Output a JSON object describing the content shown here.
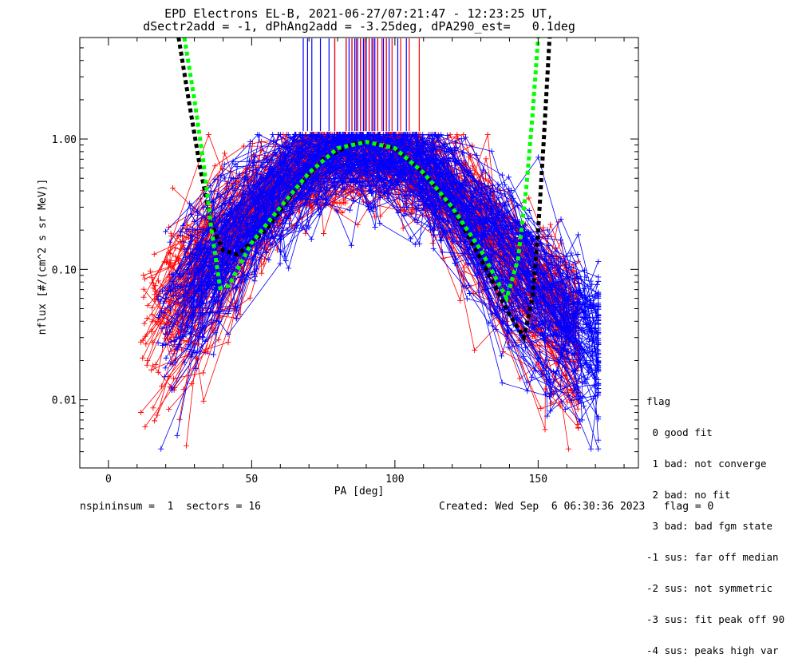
{
  "chart_data": {
    "type": "scatter",
    "title_lines": [
      "EPD Electrons EL-B, 2021-06-27/07:21:47 - 12:23:25 UT,",
      "dSectr2add = -1, dPhAng2add = -3.25deg, dPA290_est=   0.1deg"
    ],
    "xlabel": "PA [deg]",
    "ylabel": "nflux [#/(cm^2 s sr MeV)]",
    "xlim": [
      -10,
      185
    ],
    "ylim": [
      0.003,
      6.0
    ],
    "yscale": "log",
    "x_ticks": [
      0,
      50,
      100,
      150
    ],
    "x_tick_labels": [
      "0",
      "50",
      "100",
      "150"
    ],
    "y_ticks": [
      0.01,
      0.1,
      1.0
    ],
    "y_tick_labels": [
      "0.01",
      "0.10",
      "1.00"
    ],
    "n_sectors": 16,
    "n_red_traces": 110,
    "n_blue_traces": 120,
    "red_pa_min": 11,
    "red_pa_max": 164,
    "blue_pa_min": 17,
    "blue_pa_max": 171,
    "green_fit": [
      [
        26.5,
        6.0
      ],
      [
        30,
        2.0
      ],
      [
        33,
        0.7
      ],
      [
        36,
        0.2
      ],
      [
        39,
        0.072
      ],
      [
        42,
        0.075
      ],
      [
        50,
        0.16
      ],
      [
        60,
        0.3
      ],
      [
        70,
        0.55
      ],
      [
        80,
        0.85
      ],
      [
        90,
        0.95
      ],
      [
        100,
        0.85
      ],
      [
        110,
        0.55
      ],
      [
        120,
        0.3
      ],
      [
        130,
        0.14
      ],
      [
        139,
        0.06
      ],
      [
        143,
        0.12
      ],
      [
        146,
        0.45
      ],
      [
        148,
        1.5
      ],
      [
        150,
        6.0
      ]
    ],
    "black_fit": [
      [
        24.5,
        6.0
      ],
      [
        28,
        2.0
      ],
      [
        32,
        0.6
      ],
      [
        36,
        0.22
      ],
      [
        40,
        0.14
      ],
      [
        45,
        0.13
      ],
      [
        55,
        0.2
      ],
      [
        65,
        0.4
      ],
      [
        75,
        0.7
      ],
      [
        85,
        0.92
      ],
      [
        90,
        0.95
      ],
      [
        100,
        0.85
      ],
      [
        110,
        0.55
      ],
      [
        120,
        0.3
      ],
      [
        130,
        0.12
      ],
      [
        140,
        0.045
      ],
      [
        145,
        0.03
      ],
      [
        148,
        0.06
      ],
      [
        150,
        0.2
      ],
      [
        152,
        1.0
      ],
      [
        154,
        6.0
      ]
    ],
    "top_markers": {
      "blue": [
        68,
        69.5,
        71,
        74,
        77,
        79,
        83,
        84,
        85,
        86,
        87,
        88,
        89,
        90,
        91,
        92,
        93,
        94,
        96,
        97,
        98,
        101,
        104
      ],
      "red": [
        79,
        83,
        85,
        86.5,
        88,
        89.5,
        91,
        92.5,
        94,
        95.5,
        97,
        99,
        102,
        105,
        108.5
      ]
    }
  },
  "legend": {
    "title": "flag",
    "items": [
      " 0 good fit",
      " 1 bad: not converge",
      " 2 bad: no fit",
      " 3 bad: bad fgm state",
      "-1 sus: far off median",
      "-2 sus: not symmetric",
      "-3 sus: fit peak off 90",
      "-4 sus: peaks high var"
    ]
  },
  "footer": {
    "left": "nspininsum =  1  sectors = 16",
    "right": "Created: Wed Sep  6 06:30:36 2023   flag = 0"
  },
  "colors": {
    "red": "#ff0000",
    "blue": "#0000ff",
    "green": "#00ff00",
    "black": "#000000"
  }
}
